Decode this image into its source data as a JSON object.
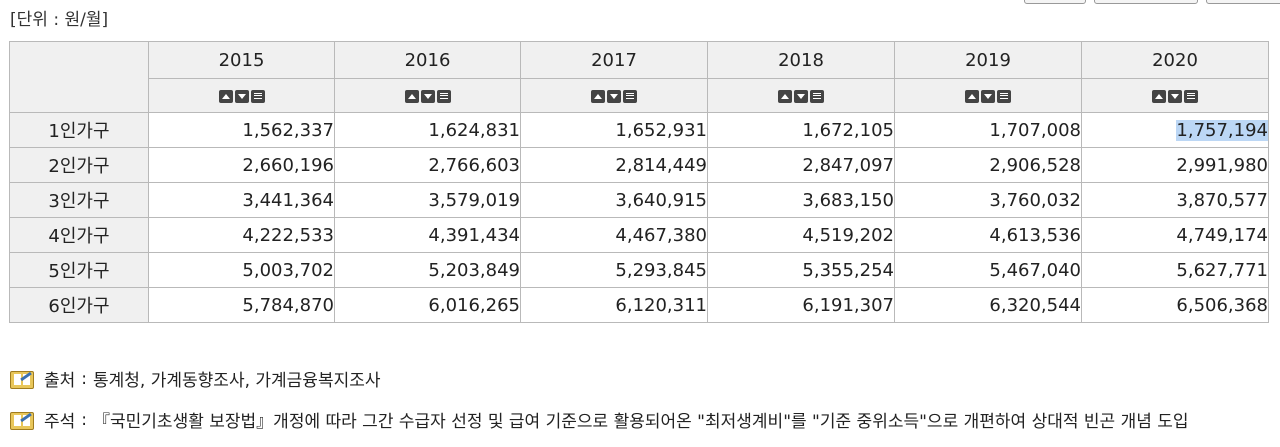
{
  "unit_label": "[단위 : 원/월]",
  "table": {
    "years": [
      "2015",
      "2016",
      "2017",
      "2018",
      "2019",
      "2020"
    ],
    "rows": [
      {
        "label": "1인가구",
        "values": [
          "1,562,337",
          "1,624,831",
          "1,652,931",
          "1,672,105",
          "1,707,008",
          "1,757,194"
        ]
      },
      {
        "label": "2인가구",
        "values": [
          "2,660,196",
          "2,766,603",
          "2,814,449",
          "2,847,097",
          "2,906,528",
          "2,991,980"
        ]
      },
      {
        "label": "3인가구",
        "values": [
          "3,441,364",
          "3,579,019",
          "3,640,915",
          "3,683,150",
          "3,760,032",
          "3,870,577"
        ]
      },
      {
        "label": "4인가구",
        "values": [
          "4,222,533",
          "4,391,434",
          "4,467,380",
          "4,519,202",
          "4,613,536",
          "4,749,174"
        ]
      },
      {
        "label": "5인가구",
        "values": [
          "5,003,702",
          "5,203,849",
          "5,293,845",
          "5,355,254",
          "5,467,040",
          "5,627,771"
        ]
      },
      {
        "label": "6인가구",
        "values": [
          "5,784,870",
          "6,016,265",
          "6,120,311",
          "6,191,307",
          "6,320,544",
          "6,506,368"
        ]
      }
    ]
  },
  "notes": {
    "source_label": "출처",
    "source_text": "통계청, 가계동향조사, 가계금융복지조사",
    "remark_label": "주석",
    "remark_text": "『국민기초생활 보장법』개정에 따라 그간 수급자 선정 및 급여 기준으로 활용되어온 \"최저생계비\"를 \"기준 중위소득\"으로 개편하여 상대적 빈곤 개념 도입",
    "icon": "book-note-icon"
  },
  "colors": {
    "header_bg": "#f0f0f0",
    "border": "#b9b9b9",
    "selection": "#bcd7f5",
    "control_button": "#444444"
  }
}
